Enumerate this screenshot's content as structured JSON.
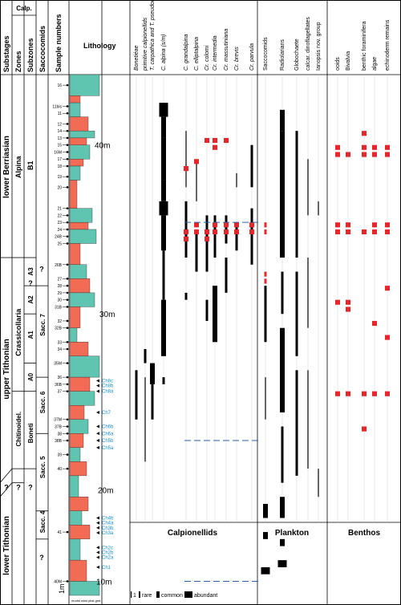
{
  "header": {
    "substages": "Substages",
    "calp": "Calp.",
    "zones": "Zones",
    "subzones": "Subzones",
    "saccocomids": "Saccocomids",
    "sample_numbers": "Sample numbers",
    "lithology": "Lithology"
  },
  "substages": [
    "lower Berriasian",
    "upper Tithonian",
    "lower Tithonian"
  ],
  "zones": [
    "Alpina",
    "Crassicollaria",
    "Chitinoidel.",
    "?",
    "?"
  ],
  "subzones": [
    "B1",
    "A3",
    "A2",
    "A1",
    "A0",
    "Boneti",
    "?",
    "?"
  ],
  "sacco_zones": [
    "Sacc. 7",
    "Sacc. 6",
    "Sacc. 5",
    "Sacc. 4",
    "?",
    "?"
  ],
  "samples": [
    "16",
    "11bis",
    "11",
    "12",
    "14",
    "13",
    "14Ex",
    "15",
    "16M",
    "17",
    "18",
    "18B",
    "19",
    "20",
    "21",
    "21B",
    "22",
    "23",
    "24",
    "24B",
    "26",
    "26B",
    "27",
    "28",
    "29",
    "30",
    "31",
    "31B",
    "32",
    "32B",
    "33",
    "34",
    "35",
    "36",
    "36B",
    "37",
    "37B",
    "38",
    "38B",
    "39",
    "40",
    "41",
    "40M"
  ],
  "sample_ticks": [
    {
      "label": "16",
      "depth": 1.5
    },
    {
      "label": "11bis",
      "depth": 4.5
    },
    {
      "label": "11",
      "depth": 5.5
    },
    {
      "label": "12",
      "depth": 7
    },
    {
      "label": "14",
      "depth": 8
    },
    {
      "label": "13",
      "depth": 9
    },
    {
      "label": "15",
      "depth": 10
    },
    {
      "label": "16M",
      "depth": 11
    },
    {
      "label": "17",
      "depth": 12
    },
    {
      "label": "18",
      "depth": 13
    },
    {
      "label": "19",
      "depth": 14.5
    },
    {
      "label": "20",
      "depth": 16
    },
    {
      "label": "21",
      "depth": 19
    },
    {
      "label": "22",
      "depth": 20
    },
    {
      "label": "23",
      "depth": 21
    },
    {
      "label": "24",
      "depth": 22
    },
    {
      "label": "24B",
      "depth": 23
    },
    {
      "label": "25",
      "depth": 24
    },
    {
      "label": "26B",
      "depth": 27
    },
    {
      "label": "27",
      "depth": 29
    },
    {
      "label": "28",
      "depth": 30
    },
    {
      "label": "29",
      "depth": 31
    },
    {
      "label": "30",
      "depth": 32
    },
    {
      "label": "31B",
      "depth": 33
    },
    {
      "label": "32",
      "depth": 35
    },
    {
      "label": "32B",
      "depth": 36
    },
    {
      "label": "33",
      "depth": 38
    },
    {
      "label": "34",
      "depth": 39
    },
    {
      "label": "35M",
      "depth": 41
    },
    {
      "label": "36",
      "depth": 43
    },
    {
      "label": "36B",
      "depth": 44
    },
    {
      "label": "37",
      "depth": 45
    },
    {
      "label": "37M",
      "depth": 49
    },
    {
      "label": "37B",
      "depth": 50
    },
    {
      "label": "38",
      "depth": 51
    },
    {
      "label": "38B",
      "depth": 52
    },
    {
      "label": "39",
      "depth": 54
    },
    {
      "label": "40",
      "depth": 56
    },
    {
      "label": "41",
      "depth": 65
    },
    {
      "label": "40M",
      "depth": 72
    }
  ],
  "ch_samples": [
    "Ch8c",
    "Ch8b",
    "Ch8a",
    "Ch7",
    "Ch6b",
    "Ch6a",
    "Ch5b",
    "Ch5a",
    "Ch4b",
    "Ch4a",
    "Ch3b",
    "Ch3a",
    "Ch2c",
    "Ch2b",
    "Ch2a",
    "Ch1"
  ],
  "scale_labels": [
    "40m",
    "30m",
    "20m",
    "10m"
  ],
  "scale_bottom": "1m",
  "lith_axis": "mudst  wkst  pkst  grst",
  "columns": {
    "calpionellids": [
      "Bonetiéae",
      "primitive calpionellids",
      "T. carpathica and\nT. pseudocarpathica",
      "C. alpina (s/m)",
      "C. grandalpina",
      "C. elliptalpina",
      "Cr. colomi",
      "Cr. intermedia",
      "Cr. massutiniana",
      "Cr. brevis",
      "Cr. parvula"
    ],
    "plankton": [
      "Saccocomids",
      "Radiolarians",
      "Globochaete",
      "calcar. dinoflagellates",
      "Ianopsis nov. group"
    ],
    "benthos": [
      "ooids",
      "Bivalvia",
      "benthic foraminifera",
      "algae",
      "echinoderm remains"
    ]
  },
  "group_labels": {
    "calpionellids": "Calpionellids",
    "plankton": "Plankton",
    "benthos": "Benthos"
  },
  "legend": {
    "rare": "rare",
    "common": "common",
    "abundant": "abundant",
    "one": "1"
  },
  "colors": {
    "teal": "#5fc4b0",
    "salmon": "#f26b55",
    "red": "#e8252a",
    "black": "#000000",
    "blue": "#1a8fc9",
    "dash": "#2f5fa8"
  },
  "occurrences": {
    "calp_black": [
      {
        "col": 3,
        "segs": [
          [
            4,
            6,
            3
          ],
          [
            6,
            9,
            2
          ],
          [
            9,
            15,
            2
          ],
          [
            15,
            18,
            2
          ],
          [
            18,
            20,
            3
          ],
          [
            20,
            25,
            2
          ],
          [
            25,
            32,
            1
          ],
          [
            32,
            40,
            2
          ],
          [
            43,
            44,
            1
          ]
        ]
      },
      {
        "col": 2,
        "segs": [
          [
            41,
            44,
            2
          ],
          [
            44,
            49,
            1
          ]
        ]
      },
      {
        "col": 1,
        "segs": [
          [
            39,
            41,
            1
          ],
          [
            43,
            55,
            0
          ]
        ]
      },
      {
        "col": 0,
        "segs": [
          [
            42,
            49,
            1
          ]
        ]
      },
      {
        "col": 4,
        "segs": [
          [
            8,
            16,
            0
          ],
          [
            18,
            26,
            1
          ],
          [
            31,
            32,
            1
          ]
        ]
      },
      {
        "col": 5,
        "segs": [
          [
            12,
            18,
            0
          ],
          [
            22,
            28,
            1
          ]
        ]
      },
      {
        "col": 6,
        "segs": [
          [
            20,
            28,
            1
          ],
          [
            32,
            35,
            1
          ]
        ]
      },
      {
        "col": 7,
        "segs": [
          [
            20,
            26,
            1
          ],
          [
            30,
            38,
            2
          ]
        ]
      },
      {
        "col": 8,
        "segs": [
          [
            20,
            24,
            1
          ],
          [
            26,
            31,
            1
          ]
        ]
      },
      {
        "col": 9,
        "segs": [
          [
            14,
            16,
            0
          ],
          [
            21,
            25,
            1
          ]
        ]
      },
      {
        "col": 10,
        "segs": [
          [
            10,
            16,
            1
          ],
          [
            19,
            27,
            1
          ]
        ]
      }
    ],
    "calp_red": [
      {
        "col": 4,
        "depths": [
          13,
          22,
          23
        ]
      },
      {
        "col": 5,
        "depths": [
          12,
          21,
          22
        ]
      },
      {
        "col": 6,
        "depths": [
          9,
          22,
          23
        ]
      },
      {
        "col": 7,
        "depths": [
          9,
          10,
          21,
          22
        ]
      },
      {
        "col": 8,
        "depths": [
          9,
          21,
          22
        ]
      },
      {
        "col": 9,
        "depths": [
          21,
          22
        ]
      },
      {
        "col": 10,
        "depths": [
          21,
          22
        ]
      }
    ],
    "plankton_black": [
      {
        "col": 0,
        "segs": [
          [
            30,
            38,
            1
          ],
          [
            43,
            49,
            0
          ],
          [
            61,
            63,
            2
          ],
          [
            65,
            66,
            2
          ],
          [
            70,
            71,
            3
          ]
        ]
      },
      {
        "col": 1,
        "segs": [
          [
            5,
            8,
            2
          ],
          [
            8,
            26,
            2
          ],
          [
            28,
            34,
            1
          ],
          [
            36,
            48,
            2
          ],
          [
            50,
            58,
            1
          ],
          [
            60,
            63,
            2
          ],
          [
            66,
            67,
            2
          ],
          [
            69,
            70,
            3
          ]
        ]
      },
      {
        "col": 2,
        "segs": [
          [
            8,
            26,
            1
          ],
          [
            28,
            40,
            1
          ],
          [
            42,
            57,
            1
          ]
        ]
      },
      {
        "col": 3,
        "segs": [
          [
            12,
            20,
            0
          ],
          [
            26,
            36,
            0
          ],
          [
            42,
            56,
            0
          ]
        ]
      },
      {
        "col": 4,
        "segs": [
          [
            18,
            20,
            0
          ],
          [
            56,
            60,
            0
          ]
        ]
      }
    ],
    "plankton_red": [
      {
        "col": 0,
        "depths": [
          21,
          22,
          28,
          29
        ]
      }
    ],
    "benthos_red": [
      {
        "col": 0,
        "depths": [
          10,
          11,
          21,
          22,
          32,
          45
        ]
      },
      {
        "col": 1,
        "depths": [
          11,
          21,
          22,
          32,
          33,
          45
        ]
      },
      {
        "col": 2,
        "depths": [
          8,
          10,
          11,
          22,
          45,
          50
        ]
      },
      {
        "col": 3,
        "depths": [
          10,
          11,
          21,
          22,
          35,
          45
        ]
      },
      {
        "col": 4,
        "depths": [
          10,
          11,
          21,
          22,
          30,
          37,
          45
        ]
      }
    ]
  }
}
